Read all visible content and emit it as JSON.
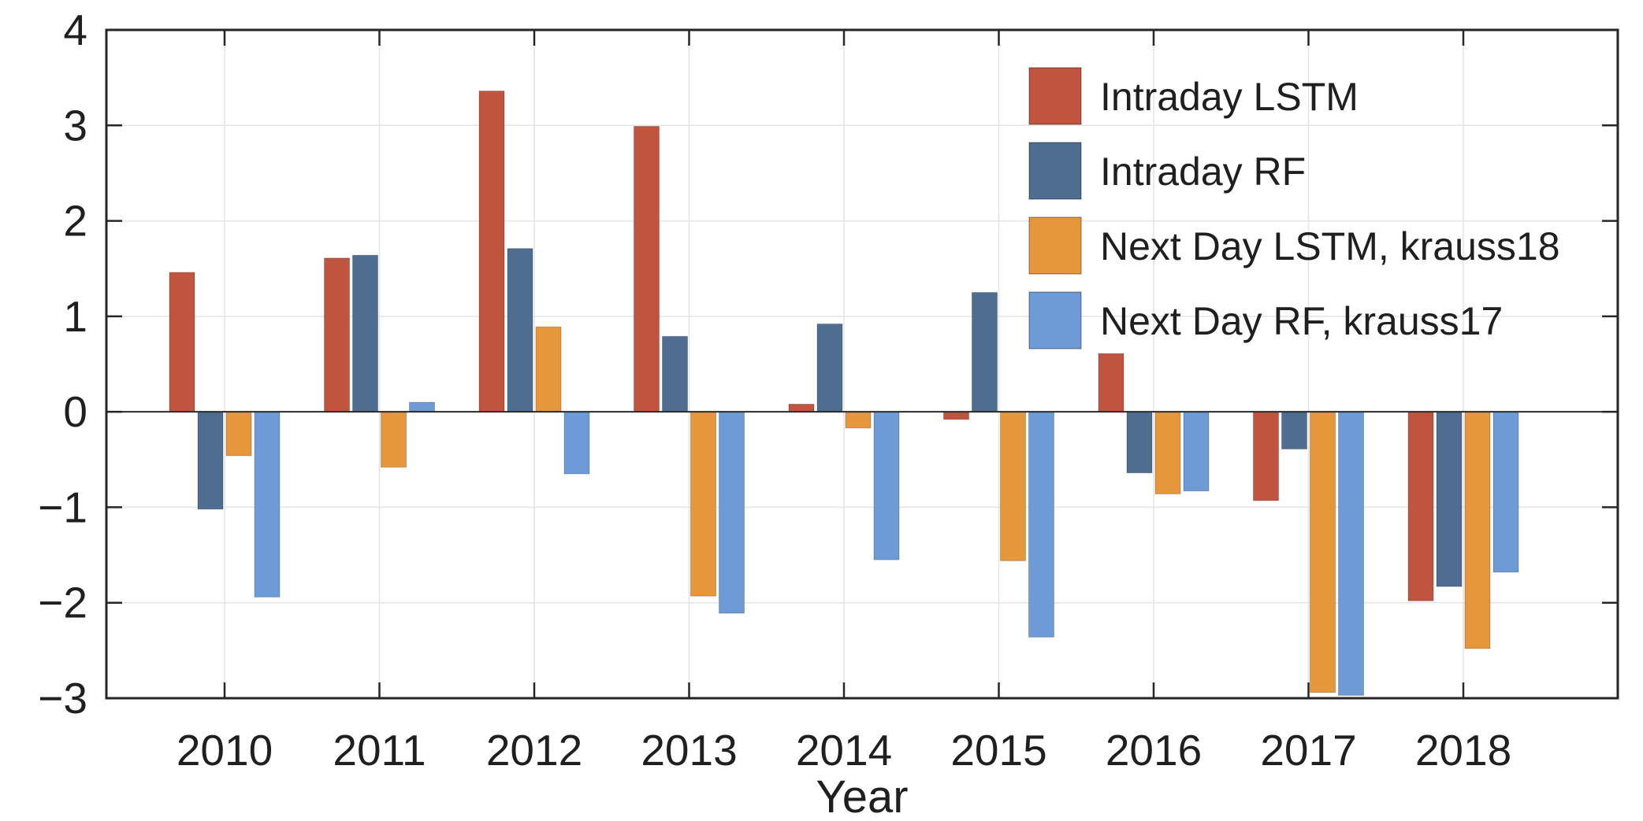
{
  "figure": {
    "background": "#ffffff",
    "axis_color": "#262626",
    "grid_color": "#e4e4e4",
    "zero_line_color": "#2b2b2b",
    "text_color": "#1f1f1f"
  },
  "chart_data": {
    "type": "bar",
    "title": "",
    "xlabel": "Year",
    "ylabel": "",
    "categories": [
      "2010",
      "2011",
      "2012",
      "2013",
      "2014",
      "2015",
      "2016",
      "2017",
      "2018"
    ],
    "series": [
      {
        "name": "Intraday LSTM",
        "color": "#C0543E",
        "values": [
          1.46,
          1.61,
          3.36,
          2.99,
          0.08,
          -0.08,
          0.61,
          -0.93,
          -1.98
        ]
      },
      {
        "name": "Intraday RF",
        "color": "#4E6D90",
        "values": [
          -1.02,
          1.64,
          1.71,
          0.79,
          0.92,
          1.25,
          -0.64,
          -0.39,
          -1.83
        ]
      },
      {
        "name": "Next Day LSTM, krauss18",
        "color": "#E6973C",
        "values": [
          -0.46,
          -0.58,
          0.89,
          -1.93,
          -0.17,
          -1.56,
          -0.86,
          -2.94,
          -2.48
        ]
      },
      {
        "name": "Next Day RF, krauss17",
        "color": "#6D9BD5",
        "values": [
          -1.94,
          0.1,
          -0.65,
          -2.11,
          -1.55,
          -2.36,
          -0.83,
          -2.97,
          -1.68
        ]
      }
    ],
    "ylim": [
      -3,
      4
    ],
    "yticks": [
      4,
      3,
      2,
      1,
      0,
      -1,
      -2,
      -3
    ],
    "yticklabels": [
      "4",
      "3",
      "2",
      "1",
      "0",
      "−1",
      "−2",
      "−3"
    ],
    "grid": true,
    "legend_position": "top-right"
  }
}
